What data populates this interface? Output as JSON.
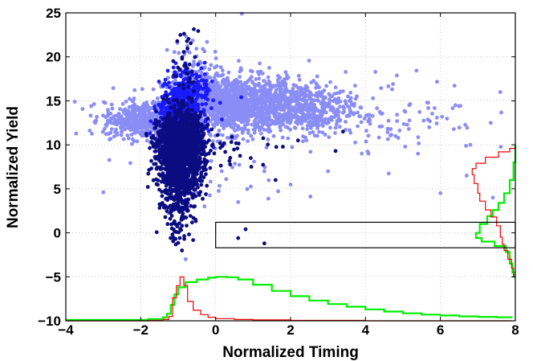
{
  "chart_data": {
    "type": "scatter",
    "xlabel": "Normalized Timing",
    "ylabel": "Normalized Yield",
    "xlim": [
      -4,
      8
    ],
    "ylim": [
      -10,
      25
    ],
    "x_ticks": [
      -4,
      -2,
      0,
      2,
      4,
      6,
      8
    ],
    "y_ticks": [
      -10,
      -5,
      0,
      5,
      10,
      15,
      20,
      25
    ],
    "x_tick_labels": [
      "−4",
      "−2",
      "0",
      "2",
      "4",
      "6",
      "8"
    ],
    "y_tick_labels": [
      "−10",
      "−5",
      "0",
      "5",
      "10",
      "15",
      "20",
      "25"
    ],
    "grid": true,
    "series": [
      {
        "color": "#8a8df5",
        "clusters": [
          {
            "cx": 0.4,
            "cy": 14.6,
            "sx": 0.9,
            "sy": 1.6,
            "n": 1400
          },
          {
            "cx": -1.9,
            "cy": 12.8,
            "sx": 0.55,
            "sy": 1.0,
            "n": 500
          },
          {
            "cx": 2.2,
            "cy": 14.2,
            "sx": 0.8,
            "sy": 1.5,
            "n": 450
          },
          {
            "cx": 4.5,
            "cy": 13.5,
            "sx": 1.3,
            "sy": 2.2,
            "n": 110
          },
          {
            "cx": -0.6,
            "cy": 18.0,
            "sx": 0.35,
            "sy": 2.0,
            "n": 90
          },
          {
            "cx": 0.1,
            "cy": 6.5,
            "sx": 1.0,
            "sy": 2.0,
            "n": 25
          }
        ],
        "points": [
          [
            0.7,
            24.9
          ],
          [
            7.6,
            16.0
          ],
          [
            -3.0,
            4.6
          ],
          [
            -0.8,
            -3.0
          ],
          [
            6.0,
            4.5
          ],
          [
            6.7,
            6.5
          ],
          [
            7.4,
            4.0
          ],
          [
            3.0,
            7.0
          ],
          [
            3.9,
            9.0
          ],
          [
            1.3,
            7.0
          ],
          [
            5.4,
            9.0
          ],
          [
            4.8,
            11.0
          ],
          [
            6.4,
            14.5
          ],
          [
            5.7,
            12.0
          ],
          [
            6.8,
            10.0
          ],
          [
            2.0,
            5.5
          ],
          [
            0.6,
            3.5
          ],
          [
            -0.3,
            3.0
          ]
        ]
      },
      {
        "color": "#1a1aff",
        "clusters": [
          {
            "cx": -0.95,
            "cy": 13.0,
            "sx": 0.28,
            "sy": 1.9,
            "n": 650
          },
          {
            "cx": -0.6,
            "cy": 16.5,
            "sx": 0.3,
            "sy": 1.2,
            "n": 120
          }
        ],
        "points": []
      },
      {
        "color": "#0c0c82",
        "clusters": [
          {
            "cx": -0.95,
            "cy": 9.5,
            "sx": 0.3,
            "sy": 2.0,
            "n": 1700
          },
          {
            "cx": -0.95,
            "cy": 4.8,
            "sx": 0.28,
            "sy": 1.6,
            "n": 200
          },
          {
            "cx": -0.95,
            "cy": 1.5,
            "sx": 0.2,
            "sy": 1.5,
            "n": 60
          },
          {
            "cx": -0.85,
            "cy": 17.0,
            "sx": 0.2,
            "sy": 3.5,
            "n": 60
          },
          {
            "cx": 0.3,
            "cy": 9.5,
            "sx": 0.8,
            "sy": 1.3,
            "n": 35
          }
        ],
        "points": [
          [
            0.6,
            -0.6
          ],
          [
            0.8,
            0.4
          ],
          [
            1.3,
            -1.2
          ],
          [
            -0.9,
            -2.0
          ],
          [
            2.2,
            10.5
          ],
          [
            1.6,
            6.0
          ],
          [
            3.4,
            11.5
          ],
          [
            3.2,
            9.3
          ]
        ]
      }
    ],
    "box": {
      "x0": 0,
      "x1": 8,
      "y0": -1.7,
      "y1": 1.2
    },
    "timing_histograms": [
      {
        "color": "#00ee00",
        "points": [
          [
            -4,
            -9.9
          ],
          [
            -2.5,
            -9.9
          ],
          [
            -1.8,
            -9.8
          ],
          [
            -1.4,
            -9.6
          ],
          [
            -1.3,
            -9.2
          ],
          [
            -1.2,
            -8.2
          ],
          [
            -1.1,
            -7.0
          ],
          [
            -1.0,
            -6.2
          ],
          [
            -0.8,
            -5.6
          ],
          [
            -0.5,
            -5.3
          ],
          [
            -0.2,
            -5.1
          ],
          [
            0.0,
            -5.0
          ],
          [
            0.3,
            -5.05
          ],
          [
            0.6,
            -5.3
          ],
          [
            1.0,
            -5.9
          ],
          [
            1.5,
            -6.6
          ],
          [
            2.0,
            -7.2
          ],
          [
            2.5,
            -7.7
          ],
          [
            3.0,
            -8.1
          ],
          [
            3.5,
            -8.4
          ],
          [
            4.0,
            -8.7
          ],
          [
            4.5,
            -8.95
          ],
          [
            5.0,
            -9.15
          ],
          [
            5.5,
            -9.3
          ],
          [
            6.0,
            -9.4
          ],
          [
            6.5,
            -9.5
          ],
          [
            7.0,
            -9.55
          ],
          [
            7.5,
            -9.6
          ],
          [
            7.9,
            -9.7
          ]
        ]
      },
      {
        "color": "#ee0000",
        "points": [
          [
            -4,
            -10.0
          ],
          [
            -2.5,
            -10.0
          ],
          [
            -1.8,
            -9.95
          ],
          [
            -1.4,
            -9.85
          ],
          [
            -1.25,
            -9.5
          ],
          [
            -1.15,
            -7.4
          ],
          [
            -1.05,
            -6.0
          ],
          [
            -0.95,
            -5.0
          ],
          [
            -0.85,
            -6.0
          ],
          [
            -0.75,
            -7.8
          ],
          [
            -0.6,
            -8.8
          ],
          [
            -0.4,
            -9.3
          ],
          [
            -0.2,
            -9.6
          ],
          [
            0.0,
            -9.75
          ],
          [
            0.5,
            -9.85
          ],
          [
            1.0,
            -9.9
          ],
          [
            2.0,
            -9.95
          ],
          [
            4.0,
            -10.0
          ],
          [
            7.9,
            -10.0
          ]
        ]
      }
    ],
    "yield_histograms": [
      {
        "color": "#00ee00",
        "points": [
          [
            8.0,
            10.0
          ],
          [
            7.95,
            8.0
          ],
          [
            7.85,
            6.0
          ],
          [
            7.7,
            4.5
          ],
          [
            7.55,
            3.4
          ],
          [
            7.4,
            2.6
          ],
          [
            7.25,
            1.9
          ],
          [
            7.05,
            1.0
          ],
          [
            6.95,
            0.0
          ],
          [
            7.1,
            -0.6
          ],
          [
            7.45,
            -1.0
          ],
          [
            7.75,
            -1.5
          ],
          [
            7.85,
            -2.2
          ],
          [
            7.92,
            -3.5
          ],
          [
            7.96,
            -4.5
          ],
          [
            8.0,
            -5.0
          ]
        ]
      },
      {
        "color": "#ee0000",
        "points": [
          [
            8.0,
            10.0
          ],
          [
            7.85,
            9.6
          ],
          [
            7.55,
            9.2
          ],
          [
            7.2,
            8.6
          ],
          [
            6.95,
            7.9
          ],
          [
            6.85,
            7.3
          ],
          [
            6.9,
            6.6
          ],
          [
            7.0,
            5.6
          ],
          [
            7.05,
            4.5
          ],
          [
            7.2,
            3.6
          ],
          [
            7.35,
            2.6
          ],
          [
            7.5,
            1.8
          ],
          [
            7.6,
            0.8
          ],
          [
            7.65,
            -0.5
          ],
          [
            7.7,
            -1.3
          ],
          [
            7.8,
            -2.0
          ],
          [
            7.9,
            -3.0
          ],
          [
            7.95,
            -4.0
          ],
          [
            8.0,
            -5.0
          ]
        ]
      }
    ]
  }
}
